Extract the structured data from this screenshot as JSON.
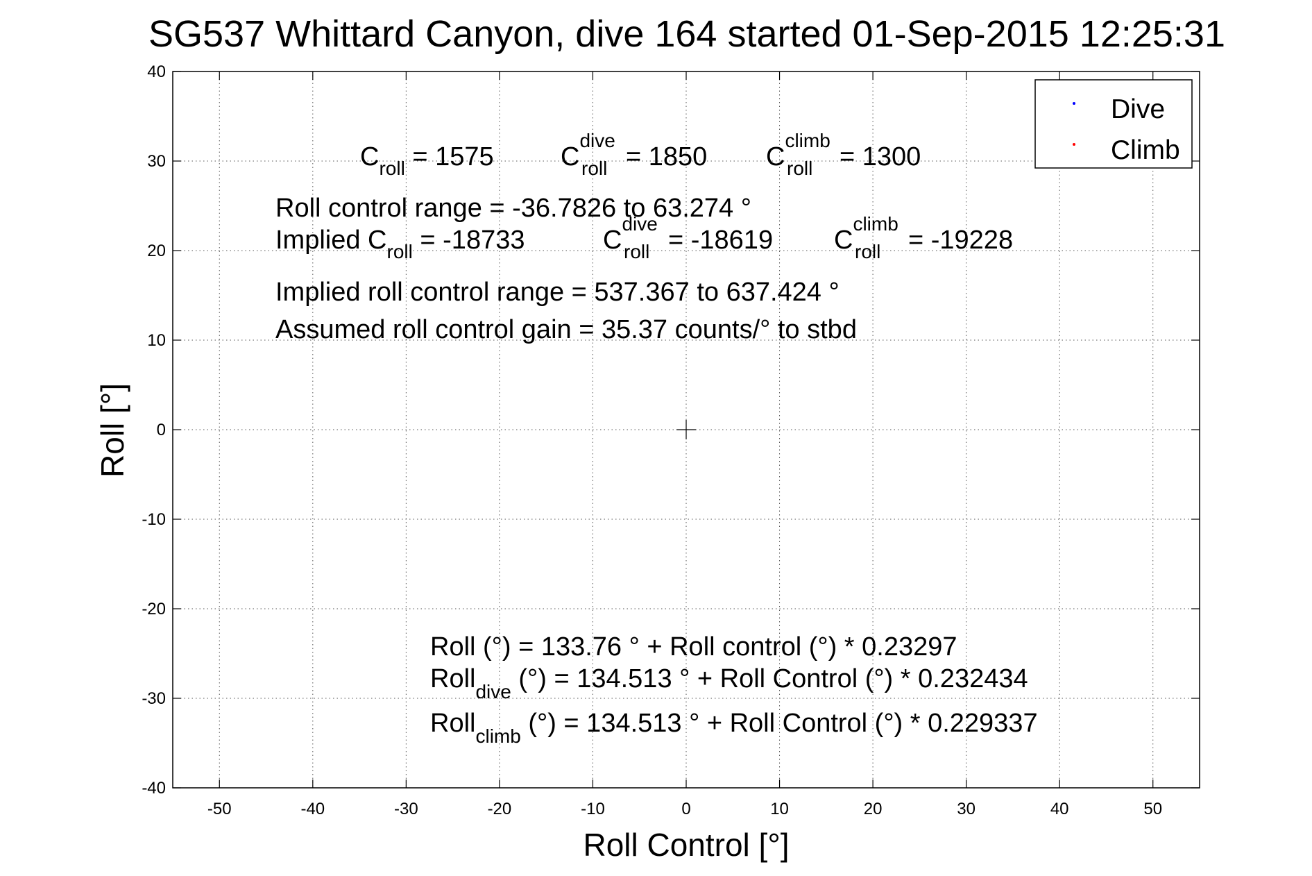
{
  "chart_data": {
    "type": "scatter",
    "title": "SG537 Whittard Canyon, dive 164 started 01-Sep-2015 12:25:31",
    "xlabel": "Roll Control [°]",
    "ylabel": "Roll [°]",
    "xlim": [
      -55,
      55
    ],
    "ylim": [
      -40,
      40
    ],
    "xticks": [
      -50,
      -40,
      -30,
      -20,
      -10,
      0,
      10,
      20,
      30,
      40,
      50
    ],
    "yticks": [
      -40,
      -30,
      -20,
      -10,
      0,
      10,
      20,
      30,
      40
    ],
    "grid": true,
    "legend_position": "top-right",
    "series": [
      {
        "name": "Dive",
        "color": "#0000ff",
        "marker": ".",
        "x": [],
        "y": []
      },
      {
        "name": "Climb",
        "color": "#ff0000",
        "marker": ".",
        "x": [],
        "y": []
      }
    ],
    "markers": [
      {
        "symbol": "+",
        "x": 0,
        "y": 0
      }
    ],
    "annotations": {
      "c_roll": {
        "base": "C",
        "sub": "roll",
        "text": " = 1575"
      },
      "c_roll_dive": {
        "base": "C",
        "sup": "dive",
        "sub": "roll",
        "text": " = 1850"
      },
      "c_roll_climb": {
        "base": "C",
        "sup": "climb",
        "sub": "roll",
        "text": " = 1300"
      },
      "roll_control_range": "Roll control range = -36.7826 to 63.274 °",
      "implied_c_roll": {
        "prefix": "Implied C",
        "sub": "roll",
        "text": " = -18733"
      },
      "implied_c_roll_dive": {
        "base": "C",
        "sup": "dive",
        "sub": "roll",
        "text": " = -18619"
      },
      "implied_c_roll_climb": {
        "base": "C",
        "sup": "climb",
        "sub": "roll",
        "text": " = -19228"
      },
      "implied_range": "Implied roll control range = 537.367 to 637.424 °",
      "assumed_gain": "Assumed roll control gain = 35.37 counts/° to stbd",
      "fit_all": "Roll (°) = 133.76 ° + Roll control (°) * 0.23297",
      "fit_dive": {
        "base": "Roll",
        "sub": "dive",
        "text": " (°) = 134.513 ° + Roll Control (°) * 0.232434"
      },
      "fit_climb": {
        "base": "Roll",
        "sub": "climb",
        "text": " (°) = 134.513 ° + Roll Control (°) * 0.229337"
      }
    }
  }
}
